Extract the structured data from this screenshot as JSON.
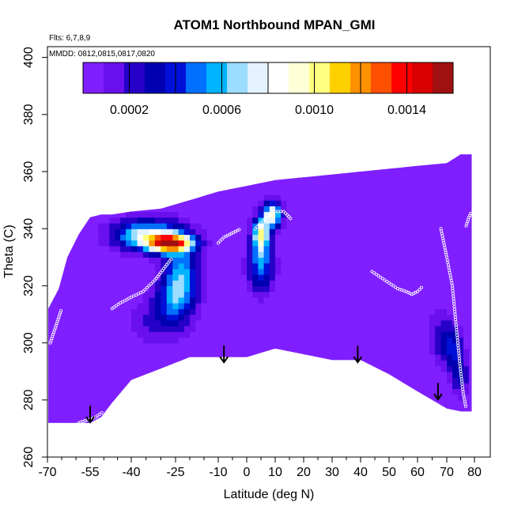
{
  "chart_data": {
    "type": "heatmap",
    "title": "ATOM1 Northbound MPAN_GMI",
    "annotations": {
      "flights": "Flts: 6,7,8,9",
      "dates": "MMDD: 0812,0815,0817,0820"
    },
    "xlabel": "Latitude (deg N)",
    "ylabel": "Theta (C)",
    "xlim": [
      -70,
      80
    ],
    "ylim": [
      260,
      400
    ],
    "x_ticks": [
      -70,
      -55,
      -40,
      -25,
      -10,
      0,
      10,
      20,
      30,
      40,
      50,
      60,
      70,
      80
    ],
    "x_minor_ticks": [
      -65,
      -60,
      -50,
      -45,
      -35,
      -30,
      -20,
      -15,
      -5,
      5,
      15,
      25,
      35,
      45,
      55,
      65,
      75
    ],
    "y_ticks": [
      260,
      280,
      300,
      320,
      340,
      360,
      380,
      400
    ],
    "colorbar": {
      "range": [
        0,
        0.0016
      ],
      "tick_values": [
        0.0002,
        0.0006,
        0.001,
        0.0014
      ],
      "tick_labels": [
        "0.0002",
        "0.0006",
        "0.0010",
        "0.0014"
      ],
      "colors": [
        "#7f1fff",
        "#6a0fee",
        "#2700c8",
        "#0000b0",
        "#0010d8",
        "#0070ff",
        "#00b4ff",
        "#9cdcff",
        "#e4f2ff",
        "#ffffff",
        "#ffffd8",
        "#ffff80",
        "#ffd000",
        "#ff9000",
        "#ff5000",
        "#ff0000",
        "#d80000",
        "#a01010"
      ]
    },
    "background_value": 3e-05,
    "domain": {
      "columns": [
        {
          "lat": -69.7,
          "bottom": 272,
          "top": 312
        },
        {
          "lat": -66,
          "bottom": 272,
          "top": 319
        },
        {
          "lat": -63,
          "bottom": 272,
          "top": 330
        },
        {
          "lat": -59,
          "bottom": 272,
          "top": 338
        },
        {
          "lat": -55,
          "bottom": 272,
          "top": 344
        },
        {
          "lat": -51,
          "bottom": 274,
          "top": 345
        },
        {
          "lat": -47,
          "bottom": 279,
          "top": 345
        },
        {
          "lat": -40,
          "bottom": 287,
          "top": 346
        },
        {
          "lat": -30,
          "bottom": 291,
          "top": 347
        },
        {
          "lat": -20,
          "bottom": 295,
          "top": 350
        },
        {
          "lat": -10,
          "bottom": 295,
          "top": 353
        },
        {
          "lat": 0,
          "bottom": 295,
          "top": 355
        },
        {
          "lat": 10,
          "bottom": 298,
          "top": 357
        },
        {
          "lat": 20,
          "bottom": 296,
          "top": 358
        },
        {
          "lat": 30,
          "bottom": 294,
          "top": 359
        },
        {
          "lat": 40,
          "bottom": 294,
          "top": 360
        },
        {
          "lat": 50,
          "bottom": 289,
          "top": 361
        },
        {
          "lat": 60,
          "bottom": 283,
          "top": 362
        },
        {
          "lat": 70,
          "bottom": 277,
          "top": 363
        },
        {
          "lat": 75,
          "bottom": 276,
          "top": 366
        },
        {
          "lat": 79,
          "bottom": 276,
          "top": 366
        }
      ]
    },
    "features": [
      {
        "lat": -27,
        "theta": 335,
        "sx": 5.5,
        "sy": 2.2,
        "value": 0.00125
      },
      {
        "lat": -35,
        "theta": 338,
        "sx": 8,
        "sy": 3.5,
        "value": 0.0007
      },
      {
        "lat": -23,
        "theta": 322,
        "sx": 4,
        "sy": 9,
        "value": 0.0006
      },
      {
        "lat": -28,
        "theta": 313,
        "sx": 4,
        "sy": 6,
        "value": 0.00028
      },
      {
        "lat": 5,
        "theta": 338,
        "sx": 2,
        "sy": 4,
        "value": 0.0009
      },
      {
        "lat": 9,
        "theta": 345,
        "sx": 2.2,
        "sy": 3,
        "value": 0.00085
      },
      {
        "lat": 5,
        "theta": 327,
        "sx": 3,
        "sy": 6,
        "value": 0.0005
      },
      {
        "lat": -35,
        "theta": 307,
        "sx": 4,
        "sy": 5,
        "value": 0.00012
      },
      {
        "lat": 72,
        "theta": 298,
        "sx": 2.5,
        "sy": 5,
        "value": 0.00035
      },
      {
        "lat": 75,
        "theta": 288,
        "sx": 2,
        "sy": 4,
        "value": 0.0003
      },
      {
        "lat": 68,
        "theta": 303,
        "sx": 3,
        "sy": 6,
        "value": 0.00018
      }
    ],
    "flight_tracks": [
      {
        "name": "track-1",
        "points": [
          [
            -69,
            300
          ],
          [
            -68,
            303
          ],
          [
            -67,
            306
          ],
          [
            -66,
            309
          ],
          [
            -65,
            312
          ]
        ]
      },
      {
        "name": "track-2",
        "points": [
          [
            -47,
            312
          ],
          [
            -44,
            314
          ],
          [
            -40,
            316
          ],
          [
            -36,
            318
          ],
          [
            -32,
            322
          ],
          [
            -29,
            326
          ],
          [
            -26,
            330
          ]
        ]
      },
      {
        "name": "track-3",
        "points": [
          [
            -10,
            335
          ],
          [
            -8,
            337
          ],
          [
            -6,
            338
          ],
          [
            -4,
            339
          ],
          [
            -2,
            340
          ]
        ]
      },
      {
        "name": "track-4",
        "points": [
          [
            3,
            340
          ],
          [
            5,
            342
          ],
          [
            7,
            344
          ],
          [
            10,
            346
          ],
          [
            13,
            346
          ],
          [
            16,
            343
          ]
        ]
      },
      {
        "name": "track-5",
        "points": [
          [
            44,
            325
          ],
          [
            47,
            323
          ],
          [
            50,
            321
          ],
          [
            53,
            319
          ],
          [
            56,
            318
          ],
          [
            58,
            317
          ],
          [
            60,
            318
          ],
          [
            62,
            320
          ]
        ]
      },
      {
        "name": "track-6",
        "points": [
          [
            -59,
            272
          ],
          [
            -56,
            273
          ],
          [
            -53,
            274
          ],
          [
            -50,
            276
          ]
        ]
      },
      {
        "name": "track-7",
        "points": [
          [
            68,
            340
          ],
          [
            70,
            330
          ],
          [
            72,
            320
          ],
          [
            73,
            310
          ],
          [
            74,
            300
          ],
          [
            75,
            290
          ],
          [
            76,
            282
          ],
          [
            77,
            277
          ]
        ]
      },
      {
        "name": "track-8",
        "points": [
          [
            77,
            341
          ],
          [
            78,
            344
          ],
          [
            79,
            346
          ]
        ]
      }
    ],
    "arrows": [
      {
        "lat": -55,
        "theta": 278
      },
      {
        "lat": -8,
        "theta": 299
      },
      {
        "lat": 39,
        "theta": 299
      },
      {
        "lat": 67,
        "theta": 286
      }
    ]
  }
}
